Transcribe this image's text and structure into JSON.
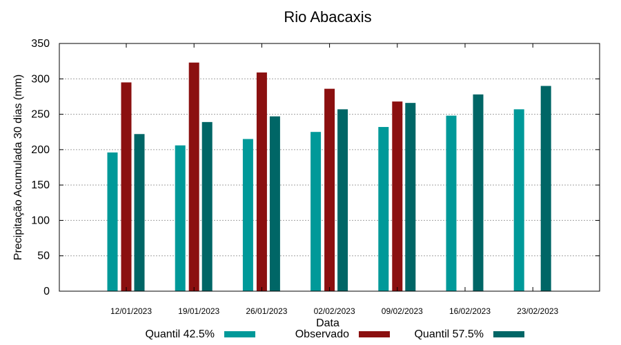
{
  "chart_data": {
    "type": "bar",
    "title": "Rio Abacaxis",
    "xlabel": "Data",
    "ylabel": "Precipitação Acumulada 30 dias (mm)",
    "ylim": [
      0,
      350
    ],
    "yticks": [
      0,
      50,
      100,
      150,
      200,
      250,
      300,
      350
    ],
    "grid": true,
    "legend_position": "bottom",
    "categories": [
      "12/01/2023",
      "19/01/2023",
      "26/01/2023",
      "02/02/2023",
      "09/02/2023",
      "16/02/2023",
      "23/02/2023"
    ],
    "series": [
      {
        "name": "Quantil 42.5%",
        "color": "#009999",
        "values": [
          196,
          206,
          215,
          225,
          232,
          248,
          257
        ]
      },
      {
        "name": "Observado",
        "color": "#8b1010",
        "values": [
          295,
          323,
          309,
          286,
          268,
          null,
          null
        ]
      },
      {
        "name": "Quantil 57.5%",
        "color": "#006666",
        "values": [
          222,
          239,
          247,
          257,
          266,
          278,
          290
        ]
      }
    ]
  }
}
